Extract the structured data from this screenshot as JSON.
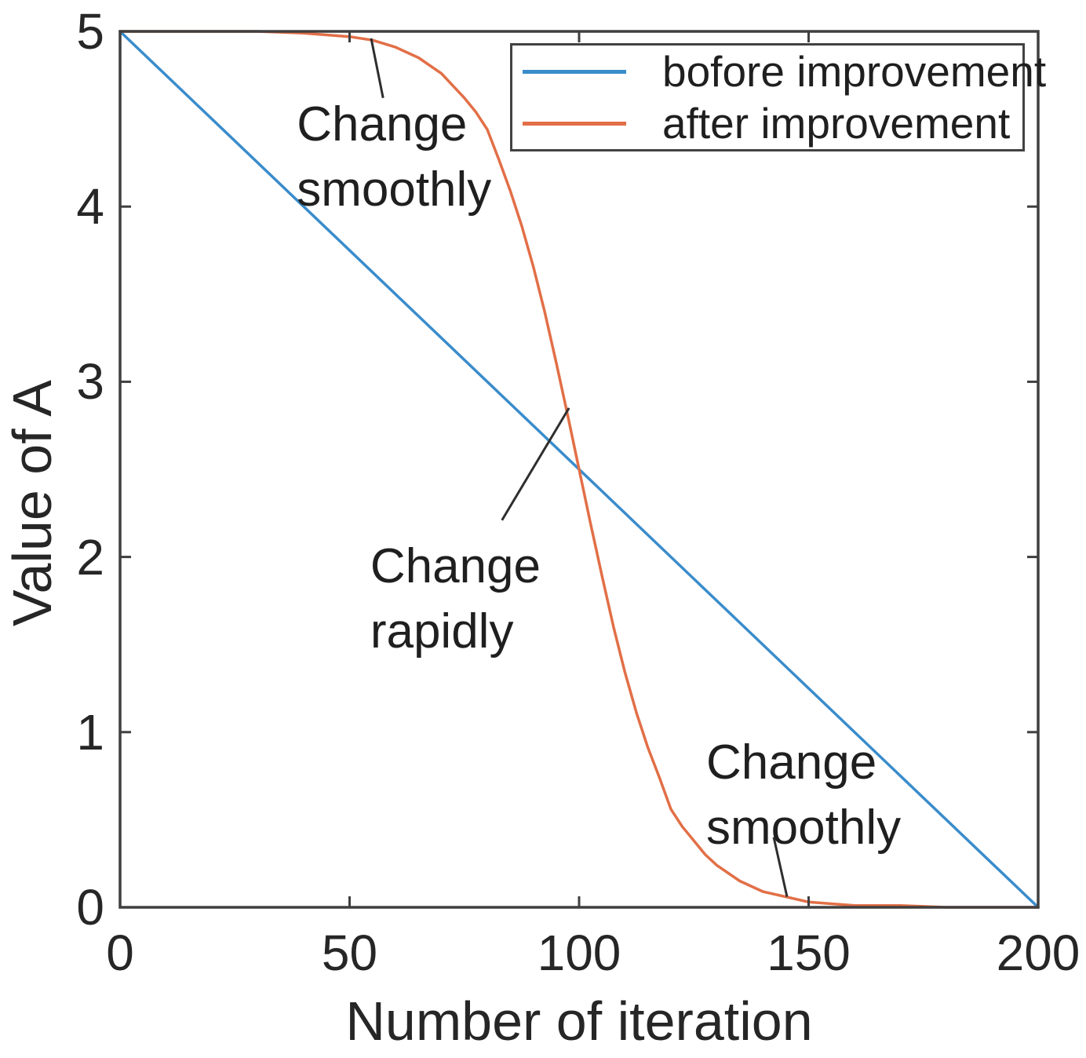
{
  "figure": {
    "x_axis_title": "Number of iteration",
    "y_axis_title": "Value of A"
  },
  "chart_data": {
    "type": "line",
    "title": "",
    "xlabel": "Number of iteration",
    "ylabel": "Value of A",
    "xlim": [
      0,
      200
    ],
    "ylim": [
      0,
      5
    ],
    "x_ticks": [
      0,
      50,
      100,
      150,
      200
    ],
    "y_ticks": [
      0,
      1,
      2,
      3,
      4,
      5
    ],
    "grid": false,
    "legend_position": "top-right",
    "frame_color": "#3f3f3f",
    "text_color": "#262626",
    "leader_color": "#2e2e2e",
    "series": [
      {
        "name": "bofore improvement",
        "color": "#3a8ccb",
        "points": [
          [
            0,
            5
          ],
          [
            200,
            0
          ]
        ]
      },
      {
        "name": "after improvement",
        "color": "#e26f47",
        "points": [
          [
            0,
            5.0
          ],
          [
            10,
            5.0
          ],
          [
            20,
            5.0
          ],
          [
            30,
            5.0
          ],
          [
            40,
            4.99
          ],
          [
            50,
            4.97
          ],
          [
            55,
            4.95
          ],
          [
            60,
            4.91
          ],
          [
            65,
            4.85
          ],
          [
            70,
            4.76
          ],
          [
            75,
            4.62
          ],
          [
            77.5,
            4.54
          ],
          [
            80,
            4.44
          ],
          [
            82.5,
            4.27
          ],
          [
            85,
            4.09
          ],
          [
            87.5,
            3.89
          ],
          [
            90,
            3.66
          ],
          [
            92.5,
            3.4
          ],
          [
            95,
            3.11
          ],
          [
            97.5,
            2.81
          ],
          [
            100,
            2.5
          ],
          [
            102.5,
            2.19
          ],
          [
            105,
            1.89
          ],
          [
            107.5,
            1.6
          ],
          [
            110,
            1.34
          ],
          [
            112.5,
            1.11
          ],
          [
            115,
            0.91
          ],
          [
            117.5,
            0.74
          ],
          [
            120,
            0.56
          ],
          [
            122.5,
            0.46
          ],
          [
            125,
            0.38
          ],
          [
            127.5,
            0.3
          ],
          [
            130,
            0.24
          ],
          [
            135,
            0.15
          ],
          [
            140,
            0.09
          ],
          [
            145,
            0.06
          ],
          [
            150,
            0.03
          ],
          [
            160,
            0.01
          ],
          [
            170,
            0.01
          ],
          [
            180,
            0.0
          ],
          [
            190,
            0.0
          ],
          [
            200,
            0.0
          ]
        ]
      }
    ],
    "annotations": [
      {
        "lines": [
          "Change",
          "smoothly"
        ],
        "text_x": 38.5,
        "text_y": 4.6,
        "leader": [
          [
            54.7,
            4.96
          ],
          [
            57.3,
            4.62
          ]
        ]
      },
      {
        "lines": [
          "Change",
          "rapidly"
        ],
        "text_x": 54.5,
        "text_y": 2.08,
        "leader": [
          [
            97.8,
            2.85
          ],
          [
            83.2,
            2.21
          ]
        ]
      },
      {
        "lines": [
          "Change",
          "smoothly"
        ],
        "text_x": 127.7,
        "text_y": 0.96,
        "leader": [
          [
            142.4,
            0.4
          ],
          [
            145.3,
            0.06
          ]
        ]
      }
    ]
  }
}
